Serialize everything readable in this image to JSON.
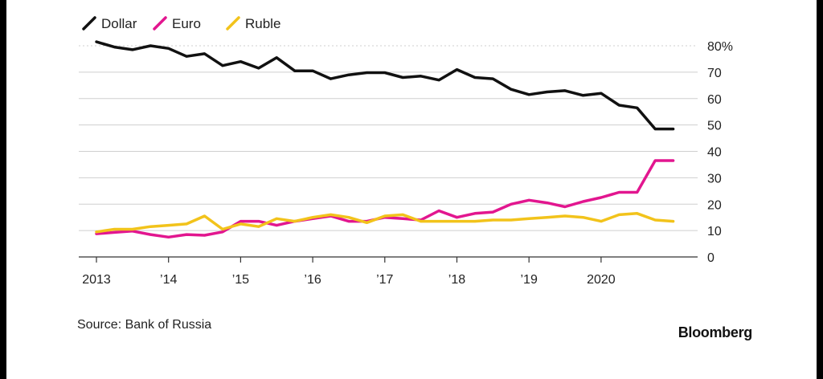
{
  "chart_data": {
    "type": "line",
    "title": "",
    "xlabel": "",
    "ylabel": "",
    "ylim": [
      0,
      80
    ],
    "yticks": [
      0,
      10,
      20,
      30,
      40,
      50,
      60,
      70,
      80
    ],
    "y_tick_labels": [
      "0",
      "10",
      "20",
      "30",
      "40",
      "50",
      "60",
      "70",
      "80%"
    ],
    "xlim": [
      2013,
      2021.25
    ],
    "xticks": [
      2013,
      2014,
      2015,
      2016,
      2017,
      2018,
      2019,
      2020
    ],
    "x_tick_labels": [
      "2013",
      "’14",
      "’15",
      "’16",
      "’17",
      "’18",
      "’19",
      "2020"
    ],
    "grid": true,
    "legend_position": "top-left",
    "series": [
      {
        "name": "Dollar",
        "color": "#111111",
        "x": [
          2013,
          2013.25,
          2013.5,
          2013.75,
          2014,
          2014.25,
          2014.5,
          2014.75,
          2015,
          2015.25,
          2015.5,
          2015.75,
          2016,
          2016.25,
          2016.5,
          2016.75,
          2017,
          2017.25,
          2017.5,
          2017.75,
          2018,
          2018.25,
          2018.5,
          2018.75,
          2019,
          2019.25,
          2019.5,
          2019.75,
          2020,
          2020.25,
          2020.5,
          2020.75,
          2021
        ],
        "values": [
          81.5,
          79.5,
          78.5,
          80,
          79,
          76,
          77,
          72.5,
          74,
          71.5,
          75.5,
          70.5,
          70.5,
          67.5,
          69,
          69.8,
          69.8,
          68,
          68.5,
          67,
          71,
          68,
          67.5,
          63.5,
          61.5,
          62.5,
          63,
          61.2,
          62,
          57.5,
          56.5,
          48.5,
          48.5
        ]
      },
      {
        "name": "Euro",
        "color": "#e2168f",
        "x": [
          2013,
          2013.25,
          2013.5,
          2013.75,
          2014,
          2014.25,
          2014.5,
          2014.75,
          2015,
          2015.25,
          2015.5,
          2015.75,
          2016,
          2016.25,
          2016.5,
          2016.75,
          2017,
          2017.25,
          2017.5,
          2017.75,
          2018,
          2018.25,
          2018.5,
          2018.75,
          2019,
          2019.25,
          2019.5,
          2019.75,
          2020,
          2020.25,
          2020.5,
          2020.75,
          2021
        ],
        "values": [
          8.8,
          9.3,
          9.8,
          8.5,
          7.5,
          8.5,
          8.2,
          9.5,
          13.5,
          13.5,
          12.0,
          13.5,
          14.5,
          15.5,
          13.5,
          13.5,
          15.0,
          14.5,
          14.0,
          17.5,
          15.0,
          16.5,
          17.0,
          20.0,
          21.5,
          20.5,
          19.0,
          21.0,
          22.5,
          24.5,
          24.5,
          36.5,
          36.5
        ]
      },
      {
        "name": "Ruble",
        "color": "#f2c31b",
        "x": [
          2013,
          2013.25,
          2013.5,
          2013.75,
          2014,
          2014.25,
          2014.5,
          2014.75,
          2015,
          2015.25,
          2015.5,
          2015.75,
          2016,
          2016.25,
          2016.5,
          2016.75,
          2017,
          2017.25,
          2017.5,
          2017.75,
          2018,
          2018.25,
          2018.5,
          2018.75,
          2019,
          2019.25,
          2019.5,
          2019.75,
          2020,
          2020.25,
          2020.5,
          2020.75,
          2021
        ],
        "values": [
          9.5,
          10.5,
          10.5,
          11.5,
          12.0,
          12.5,
          15.5,
          10.5,
          12.5,
          11.5,
          14.5,
          13.5,
          15.0,
          16.0,
          15.0,
          13.0,
          15.5,
          16.0,
          13.5,
          13.5,
          13.5,
          13.5,
          14.0,
          14.0,
          14.5,
          15.0,
          15.5,
          15.0,
          13.5,
          16.0,
          16.5,
          14.0,
          13.5
        ]
      }
    ]
  },
  "footer": {
    "source": "Source: Bank of Russia",
    "brand": "Bloomberg"
  }
}
